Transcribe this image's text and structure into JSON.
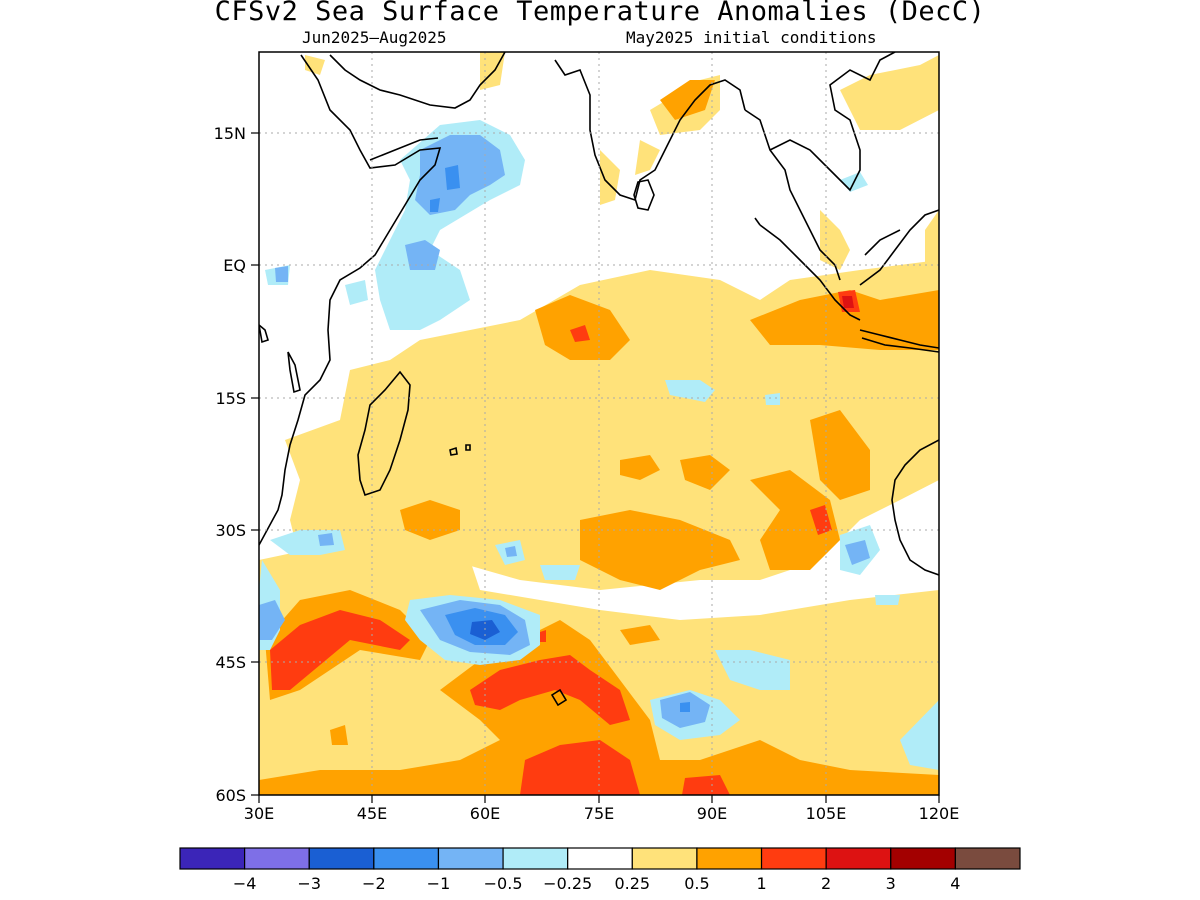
{
  "title": "CFSv2 Sea Surface Temperature Anomalies (DecC)",
  "subtitle_left": "Jun2025–Aug2025",
  "subtitle_right": "May2025 initial conditions",
  "map": {
    "lon_labels": [
      "30E",
      "45E",
      "60E",
      "75E",
      "90E",
      "105E",
      "120E"
    ],
    "lat_labels": [
      "15N",
      "EQ",
      "15S",
      "30S",
      "45S",
      "60S"
    ],
    "lon_range": [
      30,
      120
    ],
    "lat_range": [
      -60,
      24
    ],
    "grid": true
  },
  "colorbar": {
    "colors": [
      "#3b25b8",
      "#7e6fe7",
      "#1a5fd3",
      "#3a90f0",
      "#74b4f5",
      "#b0ecf8",
      "#ffffff",
      "#ffe27a",
      "#ffa200",
      "#ff3c10",
      "#dd1212",
      "#a30000",
      "#7a4b3e"
    ],
    "labels": [
      "−4",
      "−3",
      "−2",
      "−1",
      "−0.5",
      "−0.25",
      "0.25",
      "0.5",
      "1",
      "2",
      "3",
      "4"
    ]
  }
}
